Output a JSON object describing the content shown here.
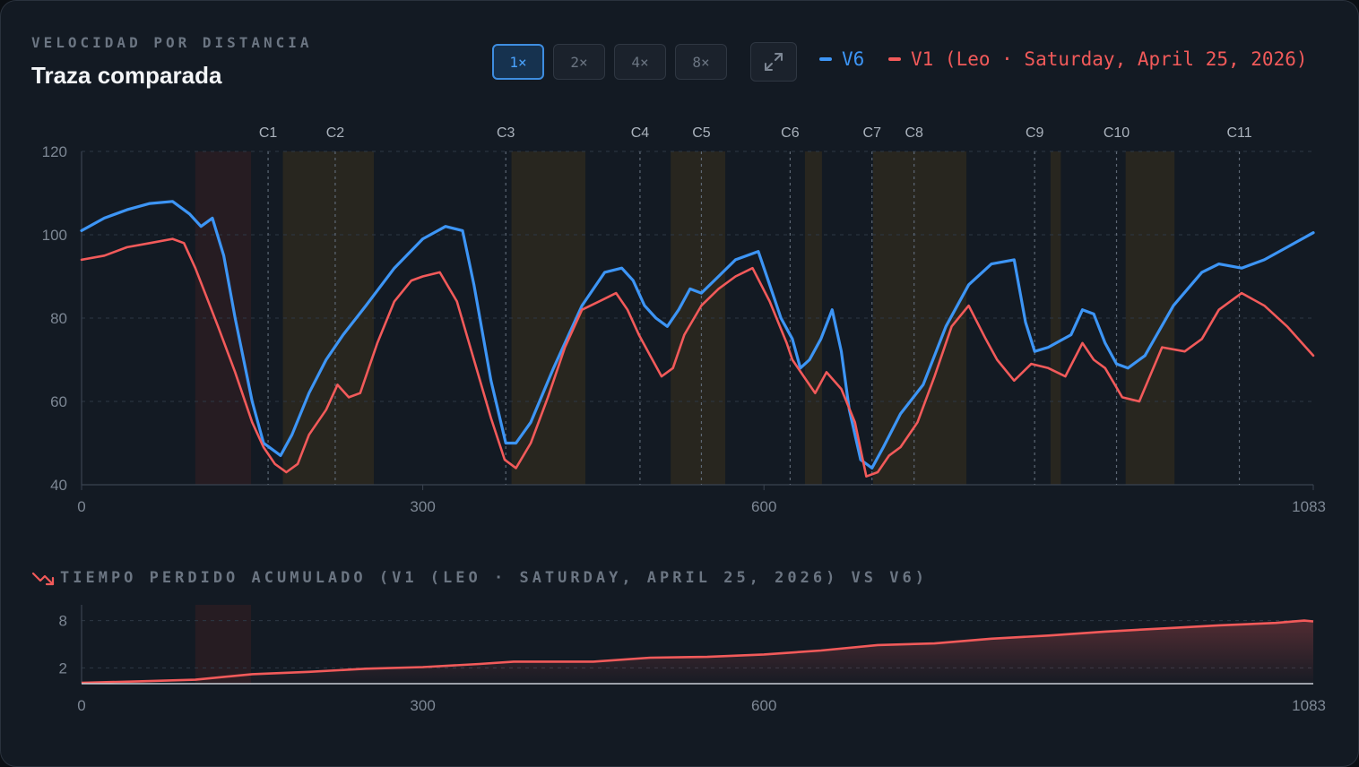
{
  "header": {
    "eyebrow": "VELOCIDAD POR DISTANCIA",
    "title": "Traza comparada"
  },
  "zoom": {
    "options": [
      "1×",
      "2×",
      "4×",
      "8×"
    ],
    "active_index": 0
  },
  "expand_icon": "expand-icon",
  "legend": {
    "v6_label": "V6",
    "v1_label": "V1 (Leo · Saturday, April 25, 2026)"
  },
  "colors": {
    "v6": "#3d95f5",
    "v1": "#f25a5a",
    "corner_band": "#28261f",
    "brake_band": "#261c22",
    "grid": "#2e3845",
    "axis_text": "#7d8794",
    "background": "#131a23"
  },
  "chart_data": [
    {
      "type": "line",
      "title": "",
      "xlabel": "",
      "ylabel": "",
      "xlim": [
        0,
        1083
      ],
      "ylim": [
        40,
        120
      ],
      "x_ticks": [
        0,
        300,
        600,
        1083
      ],
      "y_ticks": [
        40,
        60,
        80,
        100,
        120
      ],
      "grid": true,
      "legend_position": "top-right",
      "corners": [
        {
          "label": "C1",
          "x": 164
        },
        {
          "label": "C2",
          "x": 223
        },
        {
          "label": "C3",
          "x": 373
        },
        {
          "label": "C4",
          "x": 491
        },
        {
          "label": "C5",
          "x": 545
        },
        {
          "label": "C6",
          "x": 623
        },
        {
          "label": "C7",
          "x": 695
        },
        {
          "label": "C8",
          "x": 732
        },
        {
          "label": "C9",
          "x": 838
        },
        {
          "label": "C10",
          "x": 910
        },
        {
          "label": "C11",
          "x": 1018
        }
      ],
      "brake_zones": [
        [
          100,
          149
        ]
      ],
      "corner_zones": [
        [
          177,
          257
        ],
        [
          378,
          443
        ],
        [
          518,
          566
        ],
        [
          636,
          651
        ],
        [
          696,
          778
        ],
        [
          852,
          861
        ],
        [
          918,
          961
        ]
      ],
      "series": [
        {
          "name": "V6",
          "x": [
            0,
            20,
            40,
            60,
            80,
            95,
            105,
            115,
            125,
            135,
            150,
            160,
            165,
            175,
            185,
            200,
            215,
            230,
            250,
            275,
            300,
            320,
            335,
            345,
            360,
            373,
            382,
            395,
            415,
            440,
            460,
            475,
            485,
            495,
            505,
            515,
            525,
            535,
            545,
            560,
            575,
            595,
            605,
            615,
            625,
            632,
            640,
            650,
            660,
            668,
            675,
            685,
            695,
            705,
            720,
            740,
            760,
            780,
            800,
            820,
            830,
            838,
            850,
            870,
            880,
            890,
            900,
            910,
            920,
            935,
            960,
            985,
            1000,
            1020,
            1040,
            1060,
            1083
          ],
          "y": [
            101,
            104,
            106,
            107.5,
            108,
            105,
            102,
            104,
            95,
            80,
            60,
            50,
            49,
            47,
            52,
            62,
            70,
            76,
            83,
            92,
            99,
            102,
            101,
            88,
            65,
            50,
            50,
            55,
            68,
            83,
            91,
            92,
            89,
            83,
            80,
            78,
            82,
            87,
            86,
            90,
            94,
            96,
            88,
            80,
            75,
            68,
            70,
            75,
            82,
            72,
            58,
            46,
            44,
            49,
            57,
            64,
            78,
            88,
            93,
            94,
            79,
            72,
            73,
            76,
            82,
            81,
            74,
            69,
            68,
            71,
            83,
            91,
            93,
            92,
            94,
            97,
            100.5
          ]
        },
        {
          "name": "V1 (Leo · Saturday, April 25, 2026)",
          "x": [
            0,
            20,
            40,
            60,
            80,
            90,
            100,
            110,
            120,
            135,
            150,
            160,
            170,
            180,
            190,
            200,
            215,
            225,
            235,
            245,
            260,
            275,
            290,
            300,
            315,
            330,
            345,
            360,
            372,
            382,
            395,
            410,
            425,
            440,
            455,
            470,
            480,
            490,
            500,
            510,
            520,
            530,
            545,
            560,
            575,
            590,
            605,
            620,
            625,
            635,
            645,
            655,
            668,
            680,
            690,
            700,
            710,
            720,
            735,
            750,
            765,
            780,
            795,
            805,
            820,
            835,
            850,
            865,
            880,
            890,
            900,
            915,
            930,
            950,
            970,
            985,
            1000,
            1020,
            1040,
            1060,
            1083
          ],
          "y": [
            94,
            95,
            97,
            98,
            99,
            98,
            92,
            85,
            78,
            67,
            55,
            49,
            45,
            43,
            45,
            52,
            58,
            64,
            61,
            62,
            74,
            84,
            89,
            90,
            91,
            84,
            70,
            56,
            46,
            44,
            50,
            61,
            73,
            82,
            84,
            86,
            82,
            76,
            71,
            66,
            68,
            76,
            83,
            87,
            90,
            92,
            84,
            74,
            70,
            66,
            62,
            67,
            63,
            55,
            42,
            43,
            47,
            49,
            55,
            66,
            78,
            83,
            75,
            70,
            65,
            69,
            68,
            66,
            74,
            70,
            68,
            61,
            60,
            73,
            72,
            75,
            82,
            86,
            83,
            78,
            71
          ]
        }
      ]
    },
    {
      "type": "area",
      "title": "TIEMPO PERDIDO ACUMULADO (V1 (LEO · SATURDAY, APRIL 25, 2026) VS V6)",
      "xlabel": "",
      "ylabel": "",
      "xlim": [
        0,
        1083
      ],
      "ylim": [
        0,
        10
      ],
      "x_ticks": [
        0,
        300,
        600,
        1083
      ],
      "y_ticks": [
        2,
        8
      ],
      "brake_zones": [
        [
          100,
          149
        ]
      ],
      "series": [
        {
          "name": "",
          "x": [
            0,
            50,
            100,
            150,
            200,
            250,
            300,
            350,
            380,
            450,
            500,
            550,
            600,
            650,
            700,
            750,
            800,
            850,
            900,
            950,
            1000,
            1050,
            1075,
            1083
          ],
          "y": [
            0.1,
            0.3,
            0.5,
            1.2,
            1.5,
            1.9,
            2.1,
            2.5,
            2.8,
            2.8,
            3.3,
            3.4,
            3.7,
            4.2,
            4.9,
            5.1,
            5.7,
            6.1,
            6.6,
            7.0,
            7.4,
            7.7,
            8.0,
            7.9
          ]
        }
      ]
    }
  ]
}
